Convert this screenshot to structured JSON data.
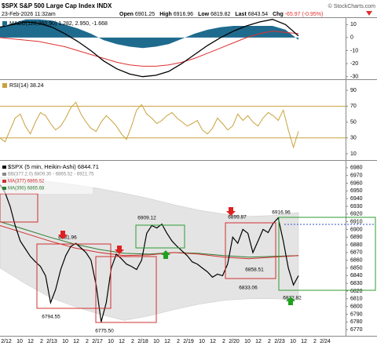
{
  "header": {
    "title": "$SPX S&P 500 Large Cap Index INDX",
    "credit": "© StockCharts.com",
    "timestamp": "23-Feb-2026 11:32am",
    "quote": [
      [
        "Open",
        "6901.25"
      ],
      [
        "High",
        "6916.96"
      ],
      [
        "Low",
        "6819.82"
      ],
      [
        "Last",
        "6843.54"
      ],
      [
        "Chg",
        "-65.97 (-0.95%)"
      ]
    ]
  },
  "chart_data": [
    {
      "type": "macd",
      "legend": "MACD(120,260,90) 1.282, 2.950, -1.668",
      "ylim": [
        -32,
        15
      ],
      "yticks": [
        10,
        0,
        -10,
        -20,
        -30
      ],
      "series": [
        {
          "color": "#1f6b8e",
          "values": [
            8,
            11,
            14,
            14,
            13,
            10,
            7,
            3,
            -2,
            -5,
            -7,
            -8,
            -7,
            -5,
            -1,
            3,
            6,
            8,
            9,
            9,
            9,
            9,
            6,
            -1.7
          ]
        },
        {
          "color": "#000000",
          "values": [
            8,
            10,
            12,
            11,
            8,
            3,
            -3,
            -10,
            -18,
            -24,
            -28,
            -30,
            -29,
            -26,
            -20,
            -13,
            -6,
            0,
            5,
            9,
            12,
            14,
            10,
            1.3
          ]
        },
        {
          "color": "#e03030",
          "values": [
            0,
            -1,
            -2,
            -3,
            -5,
            -7,
            -10,
            -13,
            -16,
            -19,
            -21,
            -22,
            -22,
            -21,
            -19,
            -16,
            -12,
            -8,
            -4,
            0,
            3,
            5,
            4,
            3
          ]
        }
      ]
    },
    {
      "type": "line",
      "legend": "RSI(14) 38.24",
      "ylim": [
        2,
        103
      ],
      "yticks": [
        90,
        70,
        50,
        30,
        10
      ],
      "reference_lines": [
        70,
        30
      ],
      "color": "#c9a23e",
      "values": [
        30,
        25,
        40,
        55,
        60,
        45,
        35,
        50,
        62,
        58,
        48,
        40,
        45,
        55,
        68,
        75,
        60,
        50,
        42,
        38,
        50,
        58,
        52,
        45,
        35,
        28,
        45,
        65,
        72,
        60,
        55,
        48,
        52,
        58,
        62,
        55,
        50,
        45,
        48,
        52,
        40,
        35,
        42,
        55,
        48,
        40,
        45,
        60,
        52,
        58,
        50,
        45,
        55,
        62,
        58,
        52,
        65,
        40,
        18,
        38.24
      ]
    },
    {
      "type": "price",
      "ylim": [
        6762,
        6989
      ],
      "yticks": [
        6770,
        6780,
        6790,
        6800,
        6810,
        6820,
        6830,
        6840,
        6850,
        6860,
        6870,
        6880,
        6890,
        6900,
        6910,
        6920,
        6930,
        6940,
        6950,
        6960,
        6970,
        6980
      ],
      "x_labels": [
        "2/12",
        "10",
        "12",
        "2",
        "2/13",
        "10",
        "12",
        "2",
        "2/17",
        "10",
        "12",
        "2",
        "2/18",
        "10",
        "12",
        "2",
        "2/19",
        "10",
        "12",
        "2",
        "2/20",
        "10",
        "12",
        "2",
        "2/23",
        "10",
        "12",
        "2",
        "2/24"
      ],
      "bands": {
        "name": "BB(377,2.0) 6809.30 - 6865.52 - 6921.75",
        "color": "#e4e4e4",
        "upper": [
          6968,
          6966,
          6962,
          6958,
          6953,
          6947,
          6940,
          6932,
          6925,
          6920,
          6917,
          6918,
          6922
        ],
        "lower": [
          6850,
          6830,
          6812,
          6800,
          6790,
          6782,
          6788,
          6796,
          6803,
          6808,
          6810,
          6810,
          6809
        ]
      },
      "series": [
        {
          "name": "$SPX (5 min, Heikin-Ashi) 6844.71",
          "color": "#000000",
          "values": [
            6958,
            6948,
            6930,
            6905,
            6885,
            6875,
            6865,
            6858,
            6852,
            6840,
            6805,
            6822,
            6848,
            6866,
            6878,
            6882,
            6876,
            6870,
            6860,
            6828,
            6780,
            6805,
            6850,
            6868,
            6862,
            6855,
            6852,
            6848,
            6860,
            6895,
            6905,
            6902,
            6907,
            6895,
            6885,
            6878,
            6872,
            6866,
            6858,
            6855,
            6850,
            6845,
            6838,
            6842,
            6840,
            6855,
            6890,
            6882,
            6900,
            6895,
            6870,
            6885,
            6900,
            6896,
            6908,
            6915,
            6885,
            6850,
            6828,
            6840
          ]
        },
        {
          "name": "MA(377) 6865.52",
          "color": "#d03030",
          "values": [
            6905,
            6895,
            6885,
            6876,
            6870,
            6866,
            6867,
            6870,
            6868,
            6864,
            6862,
            6864,
            6866
          ]
        },
        {
          "name": "MA(390) 6865.68",
          "color": "#2e7d32",
          "values": [
            6910,
            6900,
            6890,
            6881,
            6874,
            6869,
            6868,
            6870,
            6869,
            6866,
            6864,
            6865,
            6866
          ]
        }
      ],
      "annotations": [
        "6881.96",
        "6794.55",
        "6775.50",
        "6909.12",
        "6899.87",
        "6916.96",
        "6858.51",
        "6833.06",
        "6822.82"
      ]
    }
  ]
}
